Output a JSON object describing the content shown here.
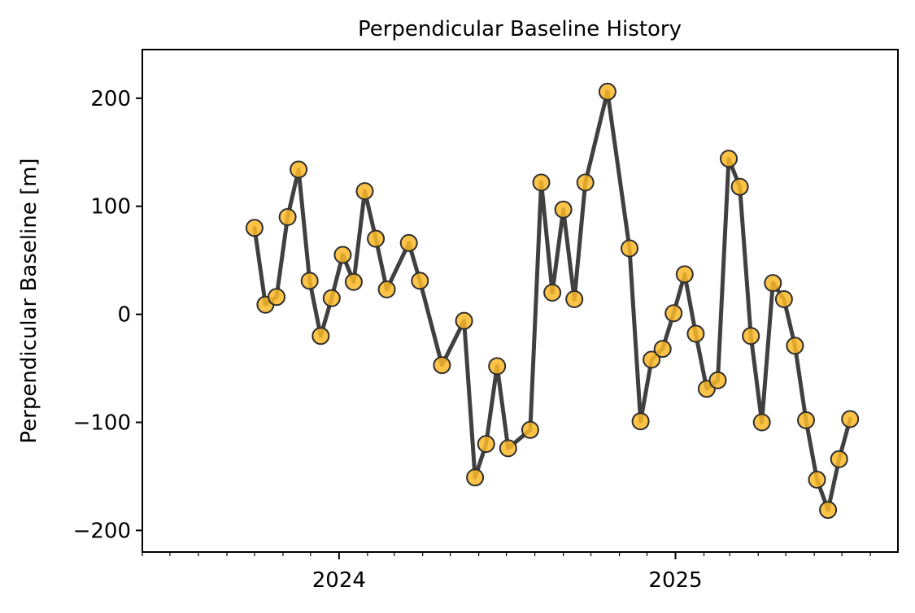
{
  "chart_data": {
    "type": "line",
    "title": "Perpendicular Baseline History",
    "xlabel": "",
    "ylabel": "Perpendicular Baseline [m]",
    "x_axis": {
      "scale": "time",
      "range": [
        "2023-06-01",
        "2025-08-31"
      ],
      "major_ticks": [
        {
          "date": "2024-01-01",
          "label": "2024"
        },
        {
          "date": "2025-01-01",
          "label": "2025"
        }
      ],
      "minor_ticks": "monthly"
    },
    "y_axis": {
      "range": [
        -220,
        245
      ],
      "ticks": [
        200,
        100,
        0,
        -100,
        -200
      ],
      "tick_labels": [
        "200",
        "100",
        "0",
        "−100",
        "−200"
      ]
    },
    "grid": false,
    "legend": "none",
    "colors": {
      "line": "#404040",
      "marker_fill": "#fbb829",
      "marker_edge": "#2e2e2e"
    },
    "x": [
      "2023-10-01",
      "2023-10-13",
      "2023-10-25",
      "2023-11-06",
      "2023-11-18",
      "2023-11-30",
      "2023-12-12",
      "2023-12-24",
      "2024-01-05",
      "2024-01-17",
      "2024-01-29",
      "2024-02-10",
      "2024-02-22",
      "2024-03-17",
      "2024-03-29",
      "2024-04-22",
      "2024-05-16",
      "2024-05-28",
      "2024-06-09",
      "2024-06-21",
      "2024-07-03",
      "2024-07-27",
      "2024-08-08",
      "2024-08-20",
      "2024-09-01",
      "2024-09-13",
      "2024-09-25",
      "2024-10-19",
      "2024-11-12",
      "2024-11-24",
      "2024-12-06",
      "2024-12-18",
      "2024-12-30",
      "2025-01-11",
      "2025-01-23",
      "2025-02-04",
      "2025-02-16",
      "2025-02-28",
      "2025-03-12",
      "2025-03-24",
      "2025-04-05",
      "2025-04-17",
      "2025-04-29",
      "2025-05-11",
      "2025-05-23",
      "2025-06-04",
      "2025-06-16",
      "2025-06-28",
      "2025-07-10"
    ],
    "series": [
      {
        "values": [
          80,
          9,
          16,
          90,
          134,
          31,
          -20,
          15,
          55,
          30,
          114,
          70,
          23,
          66,
          31,
          -47,
          -6,
          -151,
          -120,
          -48,
          -124,
          -107,
          122,
          20,
          97,
          14,
          122,
          206,
          61,
          -99,
          -42,
          -32,
          1,
          37,
          -18,
          -69,
          -61,
          144,
          118,
          -20,
          -100,
          29,
          14,
          -29,
          -98,
          -153,
          -181,
          -134,
          -97
        ]
      }
    ]
  }
}
